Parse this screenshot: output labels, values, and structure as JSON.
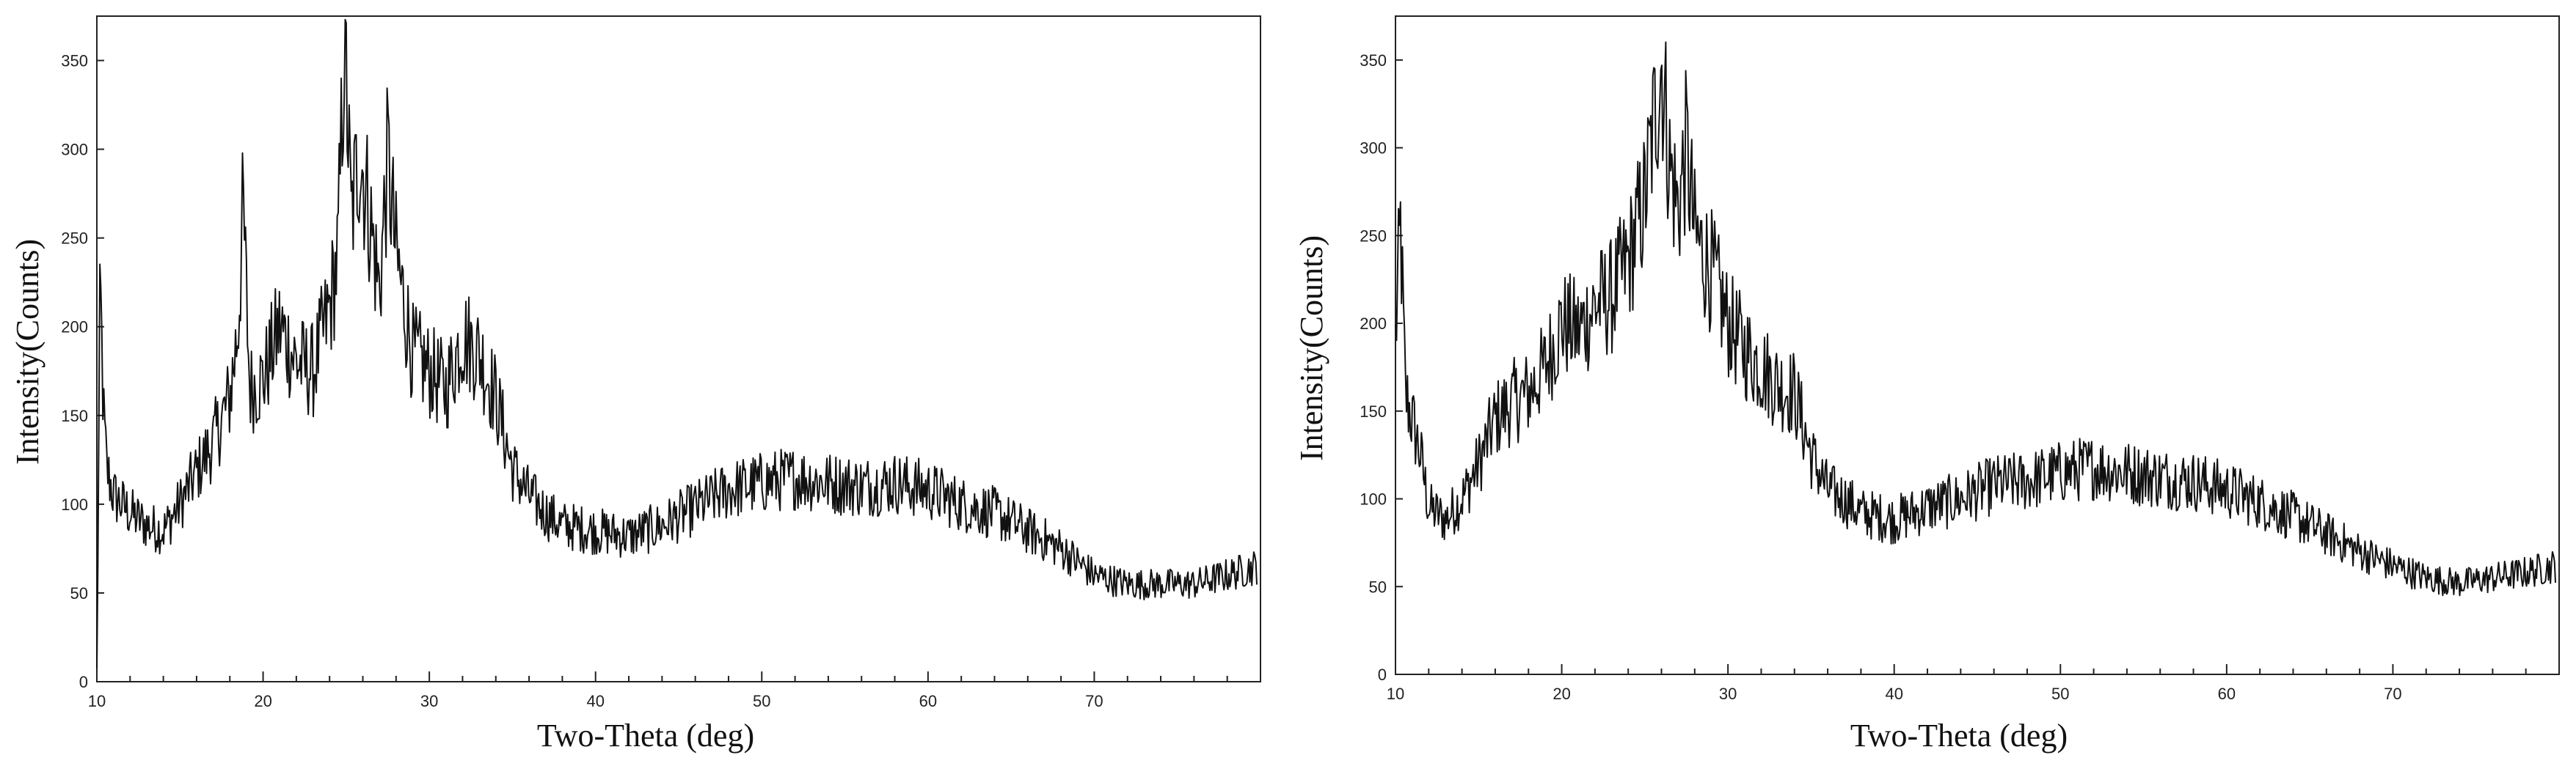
{
  "chart_data": [
    {
      "type": "line",
      "title": "",
      "xlabel": "Two-Theta (deg)",
      "ylabel": "Intensity(Counts)",
      "xlim": [
        10,
        80
      ],
      "ylim": [
        0,
        375
      ],
      "x_ticks": [
        10,
        20,
        30,
        40,
        50,
        60,
        70
      ],
      "y_ticks": [
        0,
        50,
        100,
        150,
        200,
        250,
        300,
        350
      ],
      "grid": false,
      "legend": "none",
      "line_color": "#111111",
      "series": [
        {
          "x": [
            10.0,
            10.2,
            10.4,
            10.6,
            11.0,
            11.5,
            12.0,
            13.0,
            14.0,
            15.0,
            16.0,
            17.0,
            18.0,
            18.5,
            18.8,
            19.2,
            20.0,
            21.0,
            22.0,
            23.0,
            24.0,
            24.5,
            24.9,
            25.3,
            25.8,
            26.3,
            27.0,
            27.5,
            28.0,
            29.0,
            30.0,
            31.0,
            32.0,
            33.0,
            34.0,
            35.0,
            36.0,
            37.0,
            38.0,
            40.0,
            42.0,
            44.0,
            46.0,
            48.0,
            50.0,
            52.0,
            54.0,
            56.0,
            58.0,
            60.0,
            62.0,
            64.0,
            66.0,
            68.0,
            70.0,
            72.0,
            74.0,
            76.0,
            78.0,
            79.8
          ],
          "y": [
            5,
            225,
            150,
            120,
            105,
            100,
            95,
            88,
            85,
            100,
            118,
            135,
            160,
            200,
            268,
            165,
            170,
            200,
            180,
            175,
            210,
            240,
            365,
            260,
            300,
            270,
            220,
            295,
            240,
            185,
            175,
            165,
            195,
            185,
            160,
            120,
            105,
            95,
            88,
            85,
            82,
            88,
            98,
            108,
            112,
            115,
            112,
            110,
            112,
            108,
            100,
            95,
            85,
            75,
            60,
            55,
            55,
            55,
            60,
            65
          ]
        }
      ]
    },
    {
      "type": "line",
      "title": "",
      "xlabel": "Two-Theta (deg)",
      "ylabel": "Intensity(Counts)",
      "xlim": [
        10,
        80
      ],
      "ylim": [
        0,
        375
      ],
      "x_ticks": [
        10,
        20,
        30,
        40,
        50,
        60,
        70
      ],
      "y_ticks": [
        0,
        50,
        100,
        150,
        200,
        250,
        300,
        350
      ],
      "grid": false,
      "legend": "none",
      "line_color": "#111111",
      "series": [
        {
          "x": [
            10.0,
            10.3,
            10.6,
            11.0,
            11.5,
            12.0,
            13.0,
            14.0,
            15.0,
            16.0,
            17.0,
            18.0,
            19.0,
            20.0,
            21.0,
            22.0,
            23.0,
            24.0,
            25.0,
            25.5,
            26.0,
            26.5,
            27.0,
            27.5,
            28.0,
            29.0,
            30.0,
            31.0,
            32.0,
            33.0,
            34.0,
            35.0,
            36.0,
            37.0,
            38.0,
            40.0,
            42.0,
            44.0,
            46.0,
            48.0,
            50.0,
            52.0,
            54.0,
            56.0,
            58.0,
            60.0,
            62.0,
            64.0,
            66.0,
            68.0,
            70.0,
            72.0,
            74.0,
            76.0,
            78.0,
            79.8
          ],
          "y": [
            190,
            255,
            160,
            145,
            125,
            95,
            88,
            100,
            120,
            145,
            155,
            160,
            175,
            200,
            195,
            210,
            215,
            235,
            270,
            310,
            350,
            290,
            265,
            300,
            250,
            230,
            200,
            185,
            175,
            165,
            160,
            125,
            105,
            100,
            92,
            88,
            95,
            100,
            108,
            110,
            115,
            118,
            115,
            112,
            110,
            105,
            98,
            90,
            80,
            70,
            62,
            55,
            52,
            55,
            58,
            62
          ]
        }
      ]
    }
  ]
}
